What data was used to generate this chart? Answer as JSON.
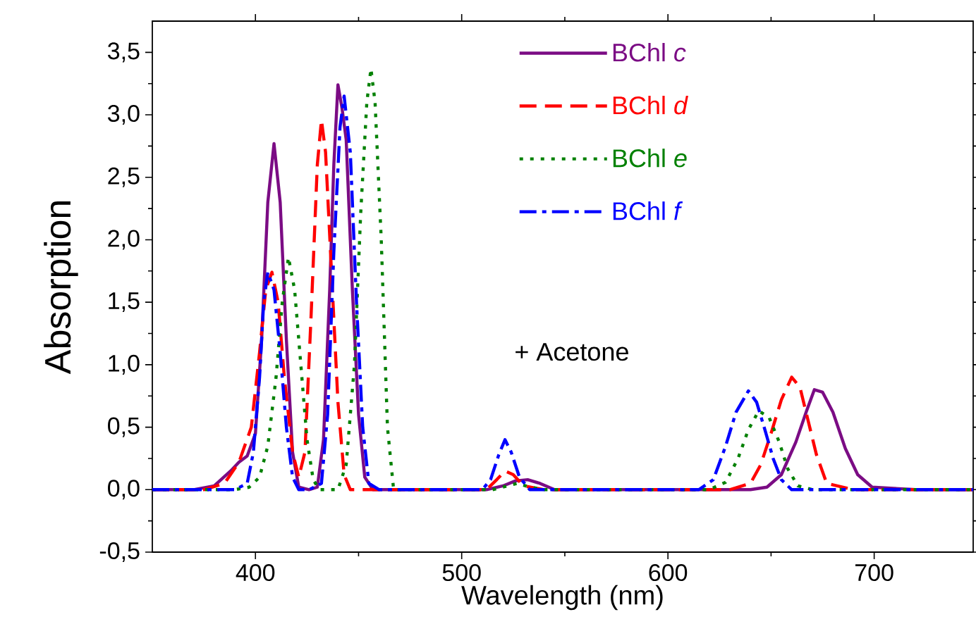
{
  "chart_data": {
    "type": "line",
    "xlabel": "Wavelength (nm)",
    "ylabel": "Absorption",
    "xlim": [
      350,
      748
    ],
    "ylim": [
      -0.5,
      3.75
    ],
    "xticks": [
      400,
      500,
      600,
      700
    ],
    "yticks": [
      {
        "value": -0.5,
        "label": "-0,5"
      },
      {
        "value": 0,
        "label": "0,0"
      },
      {
        "value": 0.5,
        "label": "0,5"
      },
      {
        "value": 1,
        "label": "1,0"
      },
      {
        "value": 1.5,
        "label": "1,5"
      },
      {
        "value": 2,
        "label": "2,0"
      },
      {
        "value": 2.5,
        "label": "2,5"
      },
      {
        "value": 3,
        "label": "3,0"
      },
      {
        "value": 3.5,
        "label": "3,5"
      }
    ],
    "legend": "top right",
    "annotations": [
      "+ Acetone"
    ],
    "series": [
      {
        "name": "BChl *c*",
        "color": "#7b0c84",
        "line_style": "solid",
        "x": [
          350,
          370,
          380,
          388,
          392,
          396,
          400,
          403,
          406,
          409,
          412,
          415,
          418,
          421,
          426,
          430,
          433,
          436,
          438,
          440,
          442,
          444,
          447,
          450,
          453,
          457,
          470,
          500,
          512,
          520,
          526,
          532,
          538,
          545,
          560,
          600,
          640,
          648,
          655,
          662,
          667,
          671,
          675,
          680,
          686,
          692,
          699,
          720,
          748
        ],
        "values": [
          0,
          0,
          0.03,
          0.15,
          0.22,
          0.27,
          0.45,
          1.2,
          2.3,
          2.77,
          2.3,
          1.2,
          0.3,
          0.02,
          0,
          0.02,
          0.4,
          1.6,
          2.6,
          3.24,
          3.05,
          2.8,
          1.6,
          0.6,
          0.1,
          0,
          0,
          0,
          0,
          0.03,
          0.07,
          0.08,
          0.05,
          0,
          0,
          0,
          0,
          0.02,
          0.12,
          0.38,
          0.62,
          0.8,
          0.78,
          0.62,
          0.33,
          0.12,
          0.02,
          0,
          0
        ]
      },
      {
        "name": "BChl *d*",
        "color": "#ff0000",
        "line_style": "dashed",
        "x": [
          350,
          375,
          385,
          392,
          398,
          402,
          405,
          408,
          411,
          414,
          418,
          421,
          424,
          427,
          430,
          432,
          434,
          437,
          440,
          443,
          446,
          450,
          500,
          512,
          517,
          521,
          525,
          530,
          540,
          600,
          630,
          640,
          645,
          650,
          655,
          660,
          664,
          668,
          672,
          677,
          690,
          748
        ],
        "values": [
          0,
          0,
          0.05,
          0.22,
          0.5,
          1.1,
          1.6,
          1.74,
          1.5,
          0.9,
          0.3,
          0.1,
          0.3,
          1.4,
          2.6,
          2.96,
          2.7,
          1.7,
          0.7,
          0.12,
          0,
          0,
          0,
          0,
          0.08,
          0.15,
          0.12,
          0.03,
          0,
          0,
          0,
          0.05,
          0.2,
          0.45,
          0.72,
          0.9,
          0.82,
          0.55,
          0.28,
          0.05,
          0,
          0
        ]
      },
      {
        "name": "BChl *e*",
        "color": "#008000",
        "line_style": "dotted",
        "x": [
          350,
          390,
          397,
          402,
          406,
          410,
          413,
          416,
          419,
          422,
          425,
          428,
          431,
          435,
          440,
          444,
          448,
          451,
          454,
          456,
          458,
          461,
          464,
          467,
          500,
          515,
          522,
          527,
          533,
          540,
          600,
          620,
          628,
          634,
          639,
          644,
          649,
          654,
          658,
          663,
          670,
          748
        ],
        "values": [
          0,
          0,
          0.02,
          0.1,
          0.35,
          0.9,
          1.5,
          1.86,
          1.6,
          1.0,
          0.4,
          0.08,
          0,
          0,
          0,
          0.2,
          1.0,
          2.2,
          3.1,
          3.37,
          3.1,
          2.0,
          0.5,
          0,
          0,
          0,
          0.03,
          0.05,
          0.02,
          0,
          0,
          0,
          0.06,
          0.25,
          0.48,
          0.63,
          0.58,
          0.38,
          0.17,
          0.03,
          0,
          0
        ]
      },
      {
        "name": "BChl *f*",
        "color": "#0000ff",
        "line_style": "dashdot",
        "x": [
          350,
          390,
          396,
          399,
          402,
          404,
          406,
          409,
          412,
          415,
          418,
          421,
          426,
          432,
          435,
          438,
          441,
          443,
          446,
          449,
          452,
          455,
          460,
          500,
          510,
          514,
          518,
          521,
          524,
          528,
          533,
          540,
          600,
          615,
          622,
          628,
          633,
          639,
          643,
          647,
          651,
          655,
          660,
          748
        ],
        "values": [
          0,
          0,
          0.05,
          0.3,
          0.9,
          1.5,
          1.74,
          1.6,
          1.1,
          0.5,
          0.1,
          0,
          0,
          0.05,
          0.6,
          1.9,
          2.9,
          3.15,
          2.7,
          1.5,
          0.5,
          0.05,
          0,
          0,
          0,
          0.08,
          0.28,
          0.4,
          0.3,
          0.1,
          0,
          0,
          0,
          0,
          0.08,
          0.35,
          0.62,
          0.79,
          0.7,
          0.48,
          0.25,
          0.08,
          0,
          0
        ]
      }
    ]
  }
}
